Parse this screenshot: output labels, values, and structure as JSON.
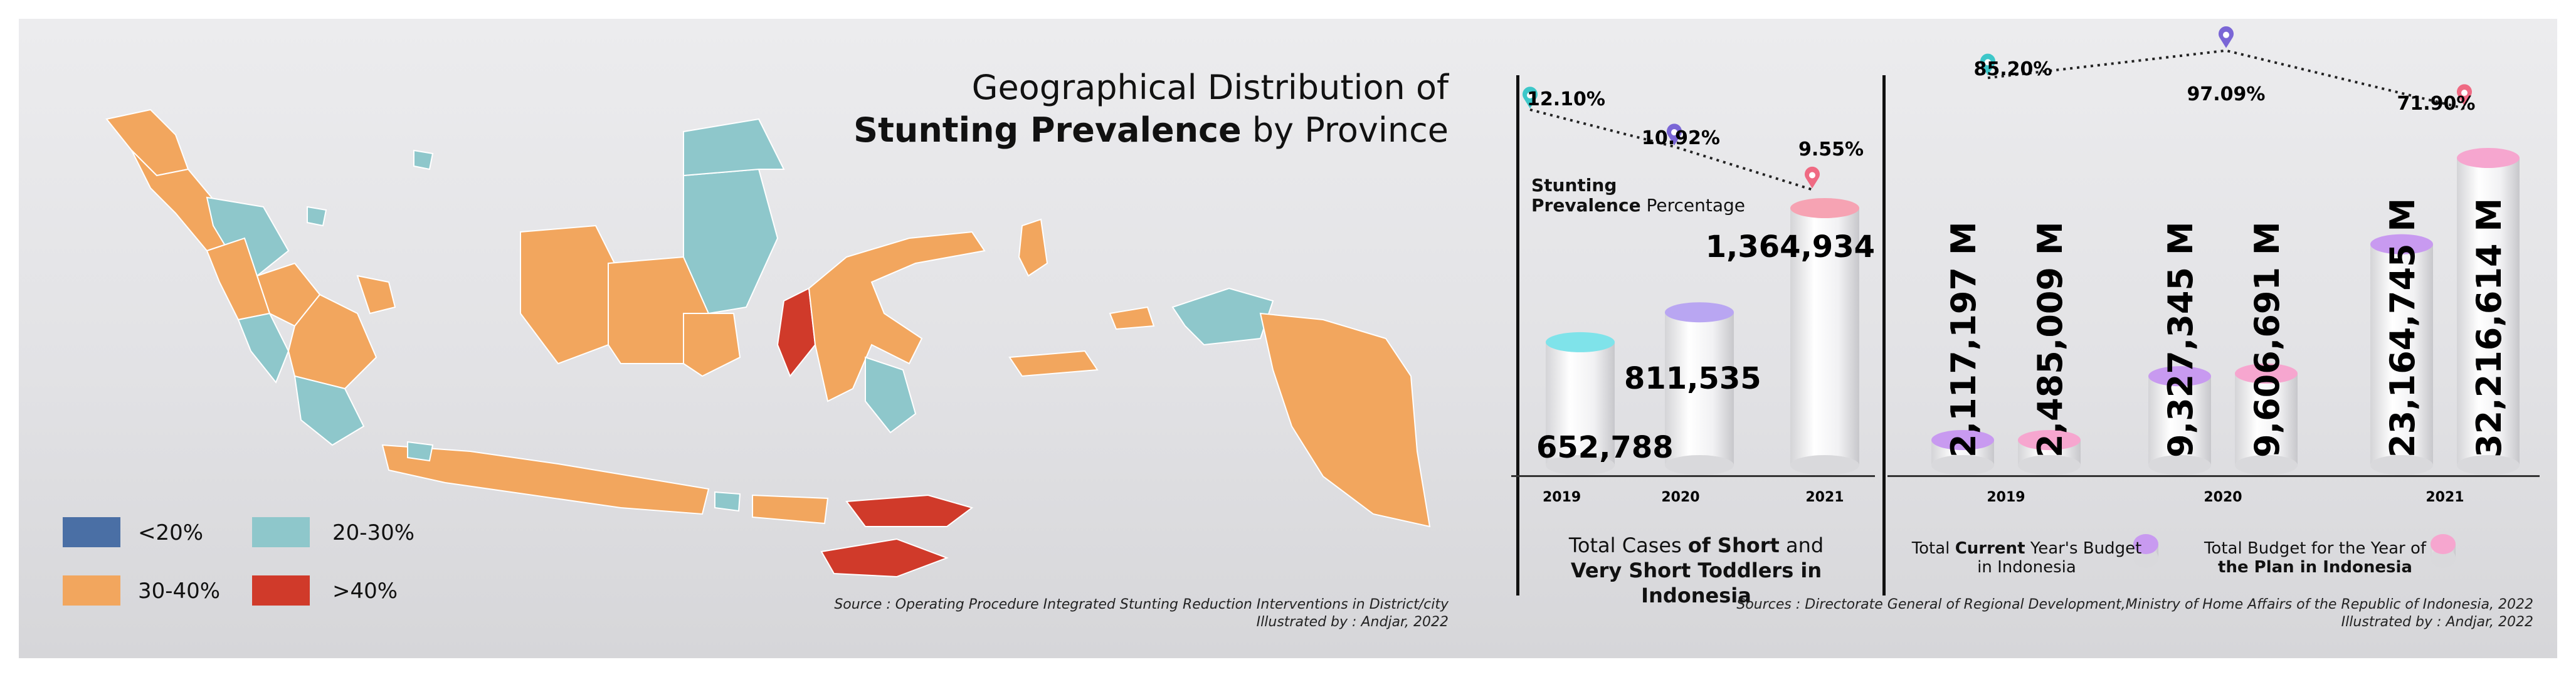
{
  "map": {
    "title_line1": "Geographical Distribution of",
    "title_line2_bold": "Stunting Prevalence",
    "title_line2_rest": " by Province",
    "legend": [
      {
        "label": "<20%",
        "color": "#4a6fa5"
      },
      {
        "label": "20-30%",
        "color": "#8ec7cb"
      },
      {
        "label": "30-40%",
        "color": "#f2a65e"
      },
      {
        "label": ">40%",
        "color": "#d03a2a"
      }
    ],
    "source_line1": "Source : Operating Procedure Integrated Stunting Reduction Interventions in District/city",
    "source_line2": "Illustrated by : Andjar, 2022"
  },
  "cases": {
    "caption_line1_light": "Total Cases ",
    "caption_line1_bold": "of Short",
    "caption_line1_end": " and",
    "caption_line2_bold": "Very Short Toddlers in Indonesia",
    "prevalence_label_bold": "Stunting",
    "prevalence_label_bold2": "Prevalence",
    "prevalence_label_rest": " Percentage"
  },
  "budget": {
    "legend_current_pre": "Total ",
    "legend_current_bold": "Current",
    "legend_current_post": " Year's Budget",
    "legend_current_line2": "in Indonesia",
    "legend_plan_line1": "Total Budget for the Year of",
    "legend_plan_line2": "the Plan in Indonesia",
    "source_line1": "Sources : Directorate General of Regional Development,Ministry of Home Affairs of the Republic of Indonesia, 2022",
    "source_line2": "Illustrated by : Andjar, 2022"
  },
  "chart_data": [
    {
      "type": "bar",
      "categories": [
        "2019",
        "2020",
        "2021"
      ],
      "series": [
        {
          "values": [
            652788,
            811535,
            1364934
          ],
          "labels": [
            "652,788",
            "811,535",
            "1,364,934"
          ],
          "colors": [
            "#7fe3ea",
            "#b9a6f2",
            "#f6a3b3"
          ]
        }
      ],
      "line": {
        "values": [
          12.1,
          10.92,
          9.55
        ],
        "labels": [
          "12.10%",
          "10.92%",
          "9.55%"
        ],
        "colors": [
          "#3dc7c9",
          "#7a66d6",
          "#ef6a83"
        ]
      }
    },
    {
      "type": "bar",
      "categories": [
        "2019",
        "2020",
        "2021"
      ],
      "series": [
        {
          "values": [
            2117197,
            9327345,
            23164745
          ],
          "labels": [
            "2,117,197 M",
            "9,327,345 M",
            "23,164,745 M"
          ],
          "color": "#c89af0"
        },
        {
          "values": [
            2485009,
            9606691,
            32216614
          ],
          "labels": [
            "2,485,009 M",
            "9,606,691 M",
            "32,216,614 M"
          ],
          "color": "#f6a6cf"
        }
      ],
      "line": {
        "values": [
          85.2,
          97.09,
          71.9
        ],
        "labels": [
          "85.20%",
          "97.09%",
          "71.90%"
        ],
        "colors": [
          "#3dc7c9",
          "#7a66d6",
          "#ef6a83"
        ]
      }
    }
  ]
}
